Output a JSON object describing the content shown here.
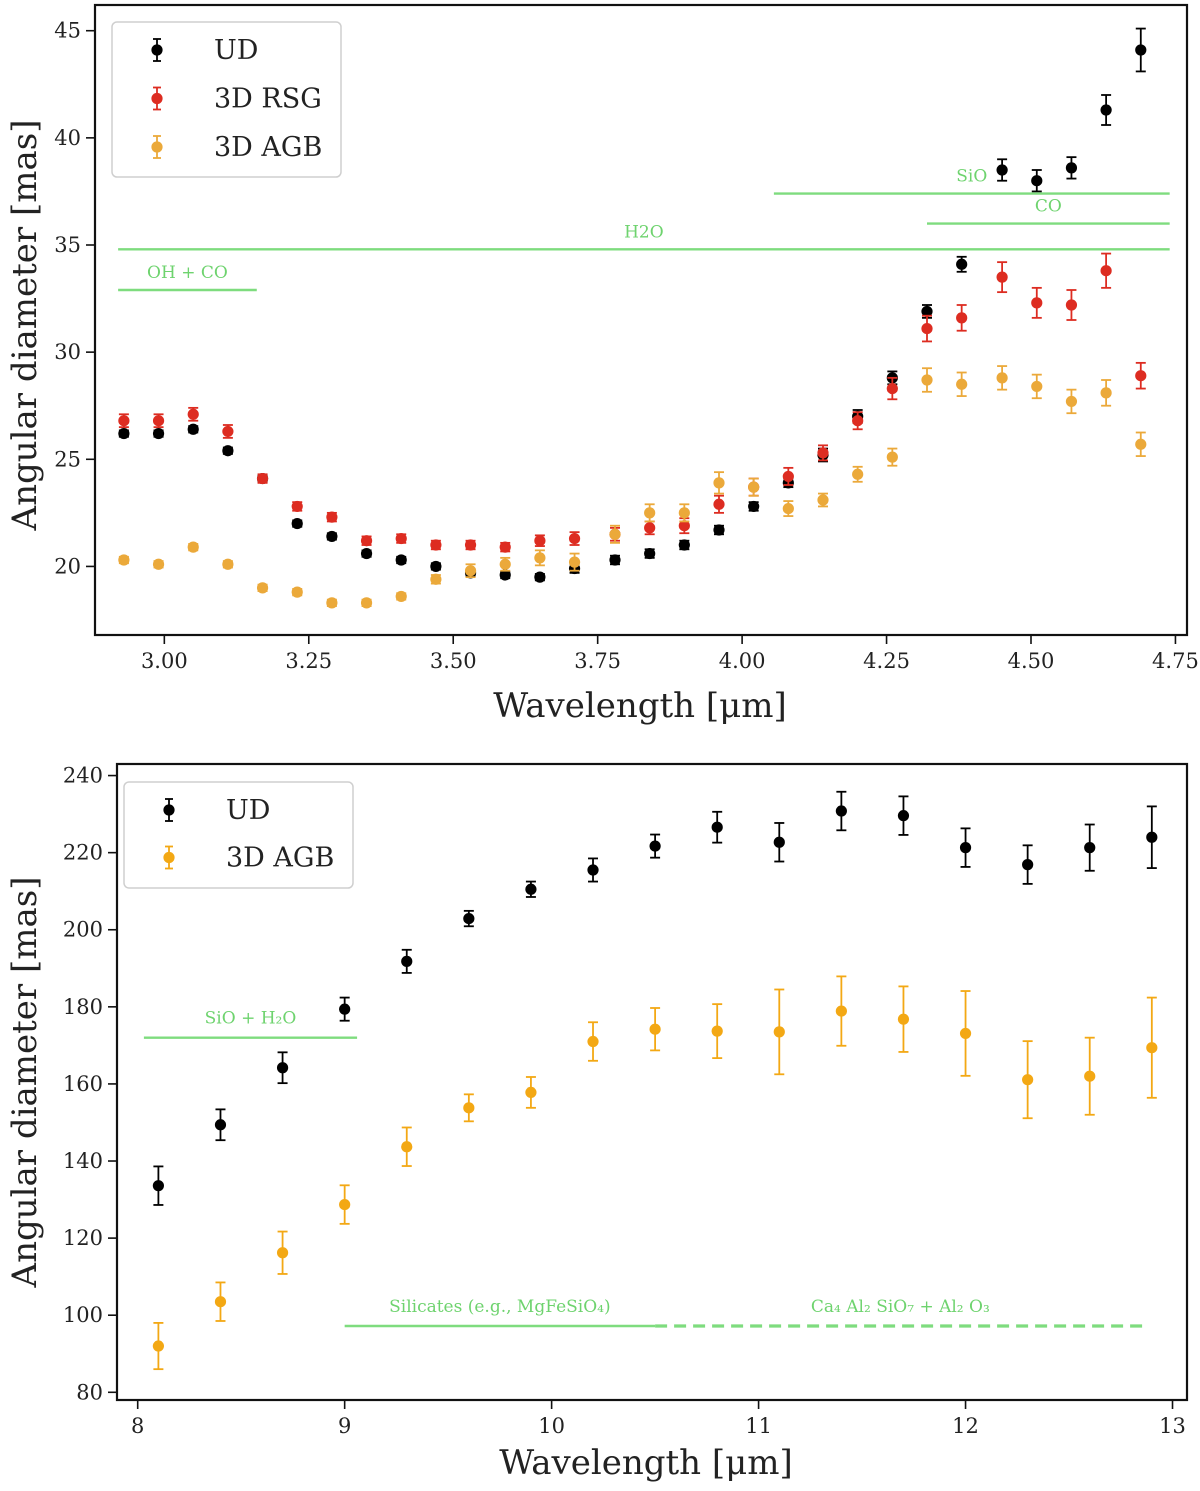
{
  "chart_data": [
    {
      "type": "scatter",
      "title": "",
      "xlabel": "Wavelength [μm]",
      "ylabel": "Angular diameter [mas]",
      "xlim": [
        2.88,
        4.77
      ],
      "ylim": [
        16.8,
        46.2
      ],
      "xticks": [
        3.0,
        3.25,
        3.5,
        3.75,
        4.0,
        4.25,
        4.5,
        4.75
      ],
      "xtick_labels": [
        "3.00",
        "3.25",
        "3.50",
        "3.75",
        "4.00",
        "4.25",
        "4.50",
        "4.75"
      ],
      "yticks": [
        20,
        25,
        30,
        35,
        40,
        45
      ],
      "ytick_labels": [
        "20",
        "25",
        "30",
        "35",
        "40",
        "45"
      ],
      "legend_position": "top-left",
      "series": [
        {
          "name": "UD",
          "color": "#000000",
          "x": [
            2.93,
            2.99,
            3.05,
            3.11,
            3.17,
            3.23,
            3.29,
            3.35,
            3.41,
            3.47,
            3.53,
            3.59,
            3.65,
            3.71,
            3.78,
            3.84,
            3.9,
            3.96,
            4.02,
            4.08,
            4.14,
            4.2,
            4.26,
            4.32,
            4.38,
            4.45,
            4.51,
            4.57,
            4.63,
            4.69
          ],
          "y": [
            26.2,
            26.2,
            26.4,
            25.4,
            24.1,
            22.0,
            21.4,
            20.6,
            20.3,
            20.0,
            19.7,
            19.6,
            19.5,
            19.9,
            20.3,
            20.6,
            21.0,
            21.7,
            22.8,
            23.9,
            25.2,
            27.0,
            28.8,
            31.9,
            34.1,
            38.5,
            38.0,
            38.6,
            41.3,
            44.1
          ],
          "err": [
            0.15,
            0.15,
            0.15,
            0.15,
            0.15,
            0.15,
            0.15,
            0.15,
            0.15,
            0.15,
            0.15,
            0.15,
            0.15,
            0.2,
            0.2,
            0.2,
            0.2,
            0.2,
            0.2,
            0.2,
            0.3,
            0.3,
            0.3,
            0.3,
            0.35,
            0.5,
            0.5,
            0.5,
            0.7,
            1.0
          ]
        },
        {
          "name": "3D RSG",
          "color": "#dd2c21",
          "x": [
            2.93,
            2.99,
            3.05,
            3.11,
            3.17,
            3.23,
            3.29,
            3.35,
            3.41,
            3.47,
            3.53,
            3.59,
            3.65,
            3.71,
            3.78,
            3.84,
            3.9,
            3.96,
            4.02,
            4.08,
            4.14,
            4.2,
            4.26,
            4.32,
            4.38,
            4.45,
            4.51,
            4.57,
            4.63,
            4.69
          ],
          "y": [
            26.8,
            26.8,
            27.1,
            26.3,
            24.1,
            22.8,
            22.3,
            21.2,
            21.3,
            21.0,
            21.0,
            20.9,
            21.2,
            21.3,
            21.5,
            21.8,
            21.9,
            22.9,
            23.7,
            24.2,
            25.3,
            26.8,
            28.3,
            31.1,
            31.6,
            33.5,
            32.3,
            32.2,
            33.8,
            28.9
          ],
          "err": [
            0.3,
            0.3,
            0.3,
            0.3,
            0.2,
            0.2,
            0.2,
            0.2,
            0.2,
            0.2,
            0.2,
            0.2,
            0.25,
            0.3,
            0.3,
            0.3,
            0.35,
            0.4,
            0.4,
            0.4,
            0.35,
            0.4,
            0.5,
            0.6,
            0.6,
            0.7,
            0.7,
            0.7,
            0.8,
            0.6
          ]
        },
        {
          "name": "3D AGB",
          "color": "#eba93a",
          "x": [
            2.93,
            2.99,
            3.05,
            3.11,
            3.17,
            3.23,
            3.29,
            3.35,
            3.41,
            3.47,
            3.53,
            3.59,
            3.65,
            3.71,
            3.78,
            3.84,
            3.9,
            3.96,
            4.02,
            4.08,
            4.14,
            4.2,
            4.26,
            4.32,
            4.38,
            4.45,
            4.51,
            4.57,
            4.63,
            4.69
          ],
          "y": [
            20.3,
            20.1,
            20.9,
            20.1,
            19.0,
            18.8,
            18.3,
            18.3,
            18.6,
            19.4,
            19.8,
            20.1,
            20.4,
            20.2,
            21.5,
            22.5,
            22.5,
            23.9,
            23.7,
            22.7,
            23.1,
            24.3,
            25.1,
            28.7,
            28.5,
            28.8,
            28.4,
            27.7,
            28.1,
            25.7
          ],
          "err": [
            0.15,
            0.15,
            0.15,
            0.15,
            0.15,
            0.15,
            0.15,
            0.15,
            0.15,
            0.2,
            0.3,
            0.3,
            0.35,
            0.4,
            0.4,
            0.4,
            0.4,
            0.5,
            0.4,
            0.35,
            0.3,
            0.35,
            0.4,
            0.55,
            0.55,
            0.55,
            0.55,
            0.55,
            0.6,
            0.55
          ]
        }
      ],
      "bands": [
        {
          "label": "OH + CO",
          "x_start": 2.92,
          "x_end": 3.16,
          "y": 32.9,
          "style": "solid"
        },
        {
          "label": "H2O",
          "x_start": 2.92,
          "x_end": 4.74,
          "y": 34.8,
          "style": "solid"
        },
        {
          "label": "SiO",
          "x_start": 4.055,
          "x_end": 4.74,
          "y": 37.4,
          "style": "solid"
        },
        {
          "label": "CO",
          "x_start": 4.32,
          "x_end": 4.74,
          "y": 36.0,
          "style": "solid"
        }
      ]
    },
    {
      "type": "scatter",
      "title": "",
      "xlabel": "Wavelength [μm]",
      "ylabel": "Angular diameter [mas]",
      "xlim": [
        7.9,
        13.07
      ],
      "ylim": [
        78,
        243
      ],
      "xticks": [
        8,
        9,
        10,
        11,
        12,
        13
      ],
      "xtick_labels": [
        "8",
        "9",
        "10",
        "11",
        "12",
        "13"
      ],
      "yticks": [
        80,
        100,
        120,
        140,
        160,
        180,
        200,
        220,
        240
      ],
      "ytick_labels": [
        "80",
        "100",
        "120",
        "140",
        "160",
        "180",
        "200",
        "220",
        "240"
      ],
      "legend_position": "top-left",
      "series": [
        {
          "name": "UD",
          "color": "#000000",
          "x": [
            8.1,
            8.4,
            8.7,
            9.0,
            9.3,
            9.6,
            9.9,
            10.2,
            10.5,
            10.8,
            11.1,
            11.4,
            11.7,
            12.0,
            12.3,
            12.6,
            12.9
          ],
          "y": [
            133.6,
            149.4,
            164.2,
            179.4,
            191.8,
            202.9,
            210.5,
            215.5,
            221.7,
            226.6,
            222.7,
            230.8,
            229.6,
            221.3,
            216.9,
            221.3,
            224.0
          ],
          "err": [
            5,
            4,
            4,
            3,
            3,
            2,
            2,
            3,
            3,
            4,
            5,
            5,
            5,
            5,
            5,
            6,
            8
          ]
        },
        {
          "name": "3D AGB",
          "color": "#f3a814",
          "x": [
            8.1,
            8.4,
            8.7,
            9.0,
            9.3,
            9.6,
            9.9,
            10.2,
            10.5,
            10.8,
            11.1,
            11.4,
            11.7,
            12.0,
            12.3,
            12.6,
            12.9
          ],
          "y": [
            92.0,
            103.5,
            116.2,
            128.7,
            143.7,
            153.8,
            157.8,
            171.0,
            174.2,
            173.7,
            173.5,
            178.9,
            176.8,
            173.1,
            161.1,
            162.0,
            169.4
          ],
          "err": [
            6,
            5,
            5.5,
            5,
            5,
            3.5,
            4,
            5,
            5.5,
            7,
            11,
            9,
            8.5,
            11,
            10,
            10,
            13
          ]
        }
      ],
      "bands": [
        {
          "label": "SiO + H₂O",
          "x_start": 8.03,
          "x_end": 9.06,
          "y": 172.0,
          "style": "solid"
        },
        {
          "label": "Silicates (e.g., MgFeSiO₄)",
          "x_start": 9.0,
          "x_end": 10.5,
          "y": 97.2,
          "style": "solid"
        },
        {
          "label": "Ca₄ Al₂ SiO₇  +  Al₂ O₃",
          "x_start": 10.5,
          "x_end": 12.87,
          "y": 97.2,
          "style": "dashed"
        }
      ]
    }
  ],
  "band_color": "#7edc7e"
}
